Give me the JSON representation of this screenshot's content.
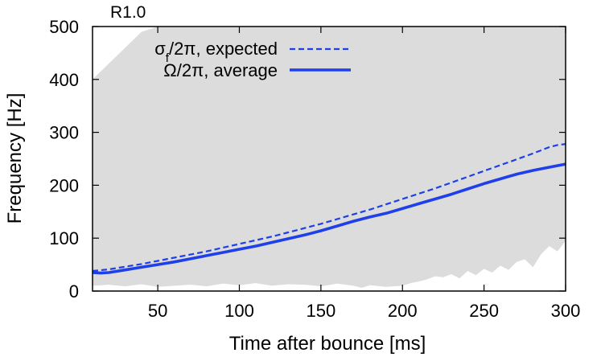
{
  "chart_data": {
    "type": "line",
    "title": "R1.0",
    "xlabel": "Time after bounce [ms]",
    "ylabel": "Frequency [Hz]",
    "xlim": [
      10,
      300
    ],
    "ylim": [
      0,
      500
    ],
    "xticks": [
      50,
      100,
      150,
      200,
      250,
      300
    ],
    "yticks": [
      0,
      100,
      200,
      300,
      400,
      500
    ],
    "xtick_labels": [
      "50",
      "100",
      "150",
      "200",
      "250",
      "300"
    ],
    "ytick_labels": [
      "0",
      "100",
      "200",
      "300",
      "400",
      "500"
    ],
    "grid": false,
    "legend_position": "top-right",
    "shaded_band": {
      "color": "#dcdcdc",
      "upper": {
        "x": [
          10,
          10,
          20,
          30,
          40,
          50,
          300
        ],
        "y": [
          390,
          400,
          430,
          460,
          490,
          500,
          500
        ]
      },
      "lower": {
        "x": [
          10,
          20,
          30,
          40,
          50,
          60,
          70,
          80,
          90,
          100,
          110,
          120,
          130,
          140,
          150,
          160,
          170,
          175,
          180,
          190,
          200,
          205,
          210,
          215,
          220,
          225,
          230,
          235,
          240,
          245,
          250,
          255,
          260,
          265,
          270,
          275,
          280,
          285,
          290,
          295,
          300
        ],
        "y": [
          10,
          12,
          9,
          13,
          8,
          10,
          12,
          9,
          14,
          11,
          15,
          10,
          13,
          12,
          9,
          14,
          10,
          6,
          11,
          8,
          10,
          15,
          18,
          22,
          28,
          26,
          32,
          24,
          38,
          30,
          42,
          35,
          48,
          40,
          55,
          60,
          45,
          70,
          85,
          75,
          95
        ]
      }
    },
    "series": [
      {
        "name": "σ_f/2π, expected",
        "style": "dashed",
        "color": "#1f3fe8",
        "x": [
          10,
          20,
          30,
          40,
          50,
          60,
          70,
          80,
          90,
          100,
          110,
          120,
          130,
          140,
          150,
          160,
          170,
          180,
          190,
          200,
          210,
          220,
          230,
          240,
          250,
          260,
          270,
          280,
          290,
          295,
          300
        ],
        "y": [
          38,
          41,
          46,
          51,
          57,
          63,
          69,
          75,
          82,
          89,
          96,
          103,
          111,
          119,
          127,
          136,
          145,
          154,
          164,
          174,
          184,
          194,
          205,
          216,
          227,
          238,
          249,
          260,
          272,
          276,
          278
        ]
      },
      {
        "name": "Ω/2π, average",
        "style": "solid",
        "color": "#1f3fe8",
        "x": [
          10,
          15,
          20,
          30,
          40,
          50,
          60,
          70,
          80,
          90,
          100,
          110,
          120,
          130,
          140,
          150,
          160,
          170,
          180,
          190,
          200,
          210,
          220,
          230,
          240,
          250,
          260,
          270,
          280,
          290,
          300
        ],
        "y": [
          35,
          34,
          35,
          40,
          45,
          50,
          55,
          61,
          67,
          73,
          79,
          85,
          92,
          99,
          106,
          114,
          123,
          132,
          140,
          147,
          156,
          165,
          174,
          183,
          193,
          203,
          212,
          221,
          228,
          234,
          240
        ]
      }
    ]
  }
}
